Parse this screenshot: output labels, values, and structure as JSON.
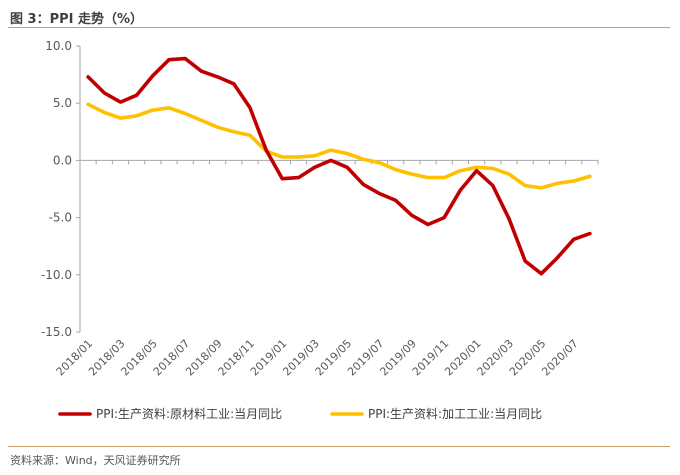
{
  "figure_title": "图 3：PPI 走势（%）",
  "source_note": "资料来源：Wind，天风证券研究所",
  "colors": {
    "series_raw": "#c00000",
    "series_processing": "#ffc000",
    "axis": "#a6a6a6",
    "rule": "#c8a06a"
  },
  "chart_data": {
    "type": "line",
    "title": "",
    "xlabel": "",
    "ylabel": "",
    "ylim": [
      -15.0,
      10.0
    ],
    "y_ticks": [
      "10.0",
      "5.0",
      "0.0",
      "-5.0",
      "-10.0",
      "-15.0"
    ],
    "y_tick_values": [
      10,
      5,
      0,
      -5,
      -10,
      -15
    ],
    "x_tick_labels": [
      "2018/01",
      "2018/03",
      "2018/05",
      "2018/07",
      "2018/09",
      "2018/11",
      "2019/01",
      "2019/03",
      "2019/05",
      "2019/07",
      "2019/09",
      "2019/11",
      "2020/01",
      "2020/03",
      "2020/05",
      "2020/07"
    ],
    "grid": false,
    "legend_position": "bottom",
    "x": [
      "2018/01",
      "2018/02",
      "2018/03",
      "2018/04",
      "2018/05",
      "2018/06",
      "2018/07",
      "2018/08",
      "2018/09",
      "2018/10",
      "2018/11",
      "2018/12",
      "2019/01",
      "2019/02",
      "2019/03",
      "2019/04",
      "2019/05",
      "2019/06",
      "2019/07",
      "2019/08",
      "2019/09",
      "2019/10",
      "2019/11",
      "2019/12",
      "2020/01",
      "2020/02",
      "2020/03",
      "2020/04",
      "2020/05",
      "2020/06",
      "2020/07",
      "2020/08"
    ],
    "series": [
      {
        "name": "PPI:生产资料:原材料工业:当月同比",
        "values": [
          7.3,
          5.9,
          5.1,
          5.7,
          7.4,
          8.8,
          8.9,
          7.8,
          7.3,
          6.7,
          4.6,
          0.9,
          -1.6,
          -1.5,
          -0.6,
          0.0,
          -0.6,
          -2.1,
          -2.9,
          -3.5,
          -4.8,
          -5.6,
          -5.0,
          -2.6,
          -0.9,
          -2.2,
          -5.1,
          -8.8,
          -9.9,
          -8.5,
          -6.9,
          -6.4
        ]
      },
      {
        "name": "PPI:生产资料:加工工业:当月同比",
        "values": [
          4.9,
          4.2,
          3.7,
          3.9,
          4.4,
          4.6,
          4.1,
          3.5,
          2.9,
          2.5,
          2.2,
          0.8,
          0.3,
          0.3,
          0.4,
          0.9,
          0.6,
          0.1,
          -0.2,
          -0.8,
          -1.2,
          -1.5,
          -1.5,
          -0.9,
          -0.6,
          -0.7,
          -1.2,
          -2.2,
          -2.4,
          -2.0,
          -1.8,
          -1.4
        ]
      }
    ]
  }
}
